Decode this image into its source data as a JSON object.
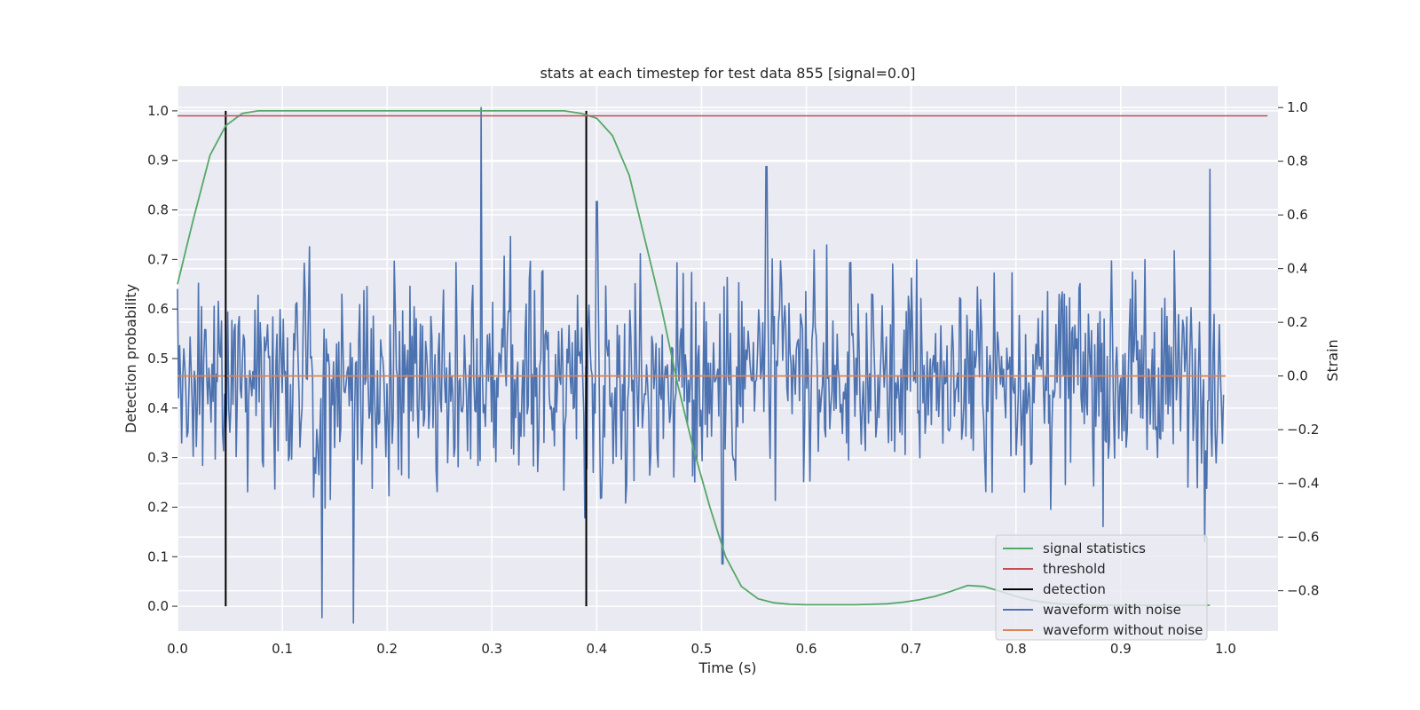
{
  "chart_data": {
    "type": "line",
    "title": "stats at each timestep for test data 855 [signal=0.0]",
    "xlabel": "Time (s)",
    "ylabel": "Detection probability",
    "y2label": "Strain",
    "xlim": [
      0.0,
      1.05
    ],
    "ylim": [
      -0.05,
      1.05
    ],
    "y2lim": [
      -0.95,
      1.08
    ],
    "grid": true,
    "legend_position": "bottom-right",
    "x_ticks": [
      "0.0",
      "0.1",
      "0.2",
      "0.3",
      "0.4",
      "0.5",
      "0.6",
      "0.7",
      "0.8",
      "0.9",
      "1.0"
    ],
    "y_ticks": [
      "0.0",
      "0.1",
      "0.2",
      "0.3",
      "0.4",
      "0.5",
      "0.6",
      "0.7",
      "0.8",
      "0.9",
      "1.0"
    ],
    "y2_ticks": [
      "−0.8",
      "−0.6",
      "−0.4",
      "−0.2",
      "0.0",
      "0.2",
      "0.4",
      "0.6",
      "0.8",
      "1.0"
    ],
    "series": [
      {
        "name": "signal statistics",
        "color": "#55a868",
        "axis": "left",
        "x": [
          0.0,
          0.015,
          0.031,
          0.046,
          0.062,
          0.077,
          0.092,
          0.108,
          0.123,
          0.138,
          0.154,
          0.169,
          0.185,
          0.2,
          0.215,
          0.231,
          0.246,
          0.262,
          0.277,
          0.292,
          0.308,
          0.323,
          0.338,
          0.354,
          0.369,
          0.385,
          0.4,
          0.415,
          0.431,
          0.446,
          0.462,
          0.477,
          0.492,
          0.508,
          0.523,
          0.538,
          0.554,
          0.569,
          0.585,
          0.6,
          0.615,
          0.631,
          0.646,
          0.662,
          0.677,
          0.692,
          0.708,
          0.723,
          0.738,
          0.754,
          0.769,
          0.785,
          0.8,
          0.815,
          0.831,
          0.846,
          0.862,
          0.877,
          0.892,
          0.908,
          0.923,
          0.938,
          0.954,
          0.969,
          0.985
        ],
        "values": [
          0.65,
          0.78,
          0.91,
          0.97,
          0.995,
          1.0,
          1.0,
          1.0,
          1.0,
          1.0,
          1.0,
          1.0,
          1.0,
          1.0,
          1.0,
          1.0,
          1.0,
          1.0,
          1.0,
          1.0,
          1.0,
          1.0,
          1.0,
          1.0,
          1.0,
          0.995,
          0.985,
          0.95,
          0.87,
          0.74,
          0.6,
          0.45,
          0.32,
          0.2,
          0.1,
          0.04,
          0.015,
          0.007,
          0.004,
          0.003,
          0.003,
          0.003,
          0.003,
          0.004,
          0.005,
          0.008,
          0.013,
          0.02,
          0.03,
          0.042,
          0.04,
          0.03,
          0.02,
          0.012,
          0.007,
          0.004,
          0.003,
          0.002,
          0.002,
          0.002,
          0.002,
          0.002,
          0.002,
          0.002,
          0.002
        ]
      },
      {
        "name": "threshold",
        "color": "#c44e52",
        "axis": "left",
        "x": [
          0.0,
          1.04
        ],
        "values": [
          0.99,
          0.99
        ]
      },
      {
        "name": "detection",
        "color": "#000000",
        "axis": "left",
        "segments": [
          {
            "x": 0.046,
            "y": [
              0.0,
              1.0
            ]
          },
          {
            "x": 0.39,
            "y": [
              0.0,
              1.0
            ]
          }
        ]
      },
      {
        "name": "waveform with noise",
        "color": "#4c72b0",
        "axis": "right",
        "x_start": 0.0,
        "x_end": 0.998,
        "noise_sigma": 0.26,
        "peaks": [
          {
            "x": 0.29,
            "y": 1.0
          },
          {
            "x": 0.4,
            "y": 0.65
          },
          {
            "x": 0.562,
            "y": 0.78
          },
          {
            "x": 0.985,
            "y": 0.77
          },
          {
            "x": 0.138,
            "y": -0.9
          },
          {
            "x": 0.168,
            "y": -0.92
          },
          {
            "x": 0.52,
            "y": -0.7
          }
        ]
      },
      {
        "name": "waveform without noise",
        "color": "#dd8452",
        "axis": "right",
        "x": [
          0.0,
          1.0
        ],
        "values": [
          0.0,
          0.0
        ]
      }
    ]
  }
}
